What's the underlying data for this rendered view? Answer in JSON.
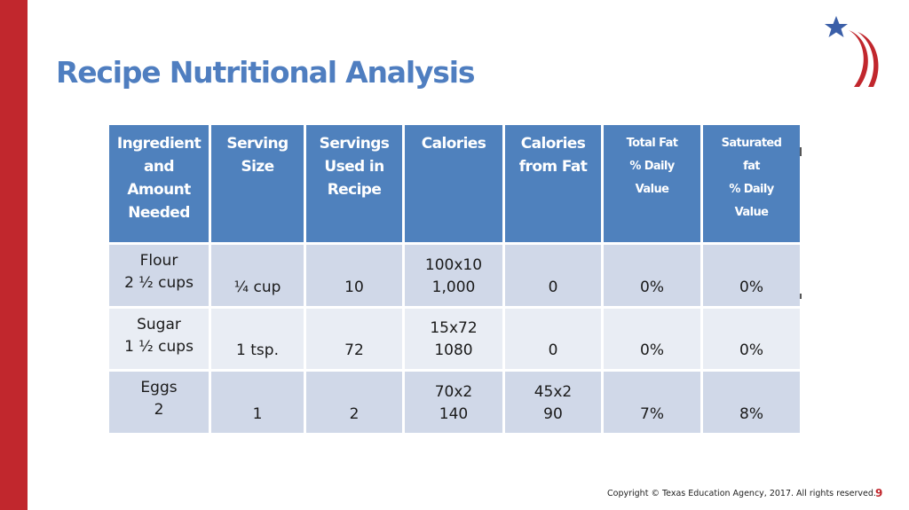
{
  "slide": {
    "title": "Recipe Nutritional Analysis",
    "footer": "Copyright © Texas Education Agency, 2017. All rights reserved.",
    "page_number": "9",
    "colors": {
      "accent_bar": "#c1272d",
      "title": "#4f7ec0",
      "header_bg": "#4f81bd",
      "row_dark": "#d0d8e8",
      "row_light": "#e9edf4"
    },
    "logo_icon": "star-and-flag-stripes-icon"
  },
  "table": {
    "headers": [
      [
        "Ingredient",
        "and",
        "Amount",
        "Needed"
      ],
      [
        "Serving",
        "Size"
      ],
      [
        "Servings",
        "Used in",
        "Recipe"
      ],
      [
        "Calories"
      ],
      [
        "Calories",
        "from Fat"
      ],
      [
        "Total Fat",
        "% Daily",
        "Value"
      ],
      [
        "Saturated",
        "fat",
        "% Daily",
        "Value"
      ]
    ],
    "rows": [
      {
        "ingredient": [
          "Flour",
          "2 ½ cups"
        ],
        "serving_size": "¼ cup",
        "servings_used": "10",
        "calories": [
          "100x10",
          "1,000"
        ],
        "calories_from_fat": [
          "0"
        ],
        "total_fat_dv": "0%",
        "saturated_fat_dv": "0%"
      },
      {
        "ingredient": [
          "Sugar",
          "1 ½ cups"
        ],
        "serving_size": "1 tsp.",
        "servings_used": "72",
        "calories": [
          "15x72",
          "1080"
        ],
        "calories_from_fat": [
          "0"
        ],
        "total_fat_dv": "0%",
        "saturated_fat_dv": "0%"
      },
      {
        "ingredient": [
          "Eggs",
          "2"
        ],
        "serving_size": "1",
        "servings_used": "2",
        "calories": [
          "70x2",
          "140"
        ],
        "calories_from_fat": [
          "45x2",
          "90"
        ],
        "total_fat_dv": "7%",
        "saturated_fat_dv": "8%"
      }
    ]
  }
}
